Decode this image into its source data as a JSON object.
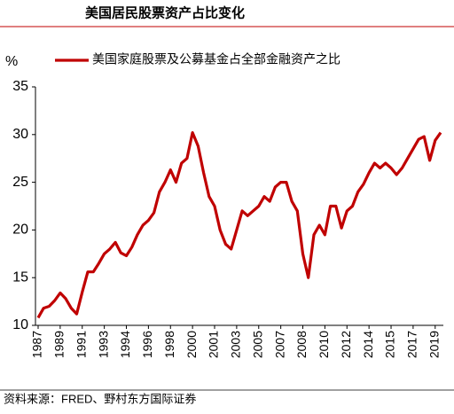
{
  "chart_data": {
    "type": "line",
    "title": "美国居民股票资产占比变化",
    "y_label": "%",
    "source": "资料来源：FRED、野村东方国际证券",
    "categories": [
      "1987",
      null,
      null,
      null,
      "1989",
      null,
      null,
      null,
      "1991",
      null,
      null,
      null,
      "1993",
      null,
      null,
      null,
      "1994",
      null,
      null,
      null,
      "1996",
      null,
      null,
      null,
      "1998",
      null,
      null,
      null,
      "2000",
      null,
      null,
      null,
      "2001",
      null,
      null,
      null,
      "2003",
      null,
      null,
      null,
      "2005",
      null,
      null,
      null,
      "2007",
      null,
      null,
      null,
      "2008",
      null,
      null,
      null,
      "2010",
      null,
      null,
      null,
      "2012",
      null,
      null,
      null,
      "2014",
      null,
      null,
      null,
      "2015",
      null,
      null,
      null,
      "2017",
      null,
      null,
      null,
      "2019",
      null
    ],
    "series": [
      {
        "name": "美国家庭股票及公募基金占全部金融资产之比",
        "color": "#c00000",
        "values": [
          10.8,
          11.8,
          12.0,
          12.6,
          13.4,
          12.8,
          11.8,
          11.2,
          13.5,
          15.6,
          15.6,
          16.5,
          17.5,
          18.0,
          18.7,
          17.6,
          17.3,
          18.2,
          19.5,
          20.5,
          21.0,
          21.8,
          24.0,
          25.0,
          26.3,
          25.0,
          27.0,
          27.5,
          30.2,
          28.8,
          26.0,
          23.5,
          22.5,
          20.0,
          18.5,
          18.0,
          20.0,
          22.0,
          21.5,
          22.0,
          22.5,
          23.5,
          23.0,
          24.5,
          25.0,
          25.0,
          23.0,
          22.0,
          17.5,
          15.0,
          19.5,
          20.5,
          19.5,
          22.5,
          22.5,
          20.2,
          22.0,
          22.5,
          24.0,
          24.8,
          26.0,
          27.0,
          26.5,
          27.0,
          26.5,
          25.8,
          26.5,
          27.5,
          28.5,
          29.5,
          29.8,
          27.3,
          29.4,
          30.2
        ]
      }
    ],
    "ylim": [
      10,
      35
    ],
    "yticks": [
      10,
      15,
      20,
      25,
      30,
      35
    ],
    "legend": "top"
  }
}
